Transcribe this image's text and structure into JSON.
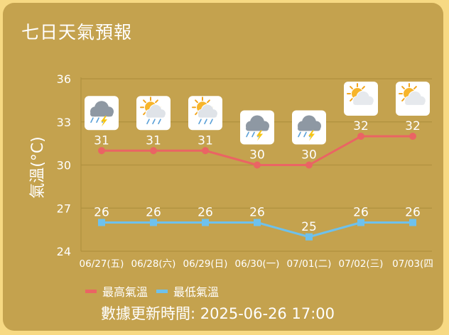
{
  "title": "七日天氣預報",
  "legend": {
    "high": "最高氣溫",
    "low": "最低氣溫"
  },
  "updated": "數據更新時間: 2025-06-26 17:00",
  "colors": {
    "background": "#c4a24e",
    "high": "#ea6464",
    "low": "#6ec1ec",
    "grid": "#b0913f"
  },
  "icons": [
    "thunder-rain-icon",
    "partly-cloudy-rain-icon",
    "partly-cloudy-rain-icon",
    "thunder-rain-icon",
    "thunder-rain-icon",
    "partly-cloudy-icon",
    "partly-cloudy-icon"
  ],
  "chart_data": {
    "type": "line",
    "title": "",
    "ylabel": "氣溫(°C)",
    "xlabel": "",
    "categories": [
      "06/27(五)",
      "06/28(六)",
      "06/29(日)",
      "06/30(一)",
      "07/01(二)",
      "07/02(三)",
      "07/03(四"
    ],
    "yticks": [
      24,
      27,
      30,
      33,
      36
    ],
    "ylim": [
      24,
      36
    ],
    "grid": true,
    "legend_position": "bottom-left",
    "series": [
      {
        "name": "最高氣溫",
        "values": [
          31,
          31,
          31,
          30,
          30,
          32,
          32
        ]
      },
      {
        "name": "最低氣溫",
        "values": [
          26,
          26,
          26,
          26,
          25,
          26,
          26
        ]
      }
    ]
  }
}
